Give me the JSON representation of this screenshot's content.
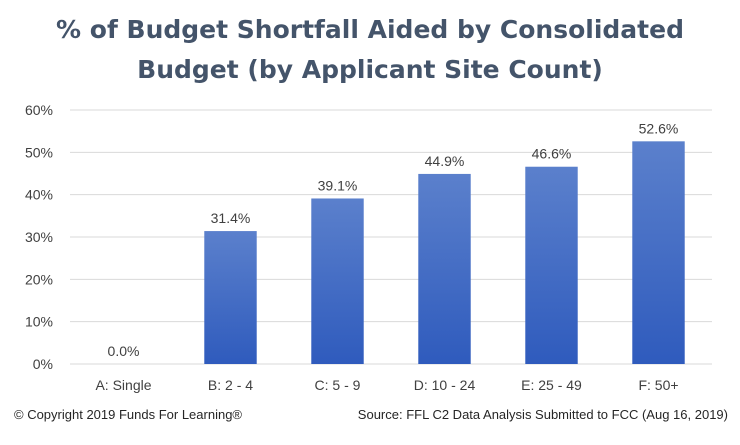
{
  "chart_data": {
    "type": "bar",
    "title_lines": [
      "% of Budget Shortfall Aided by Consolidated",
      "Budget (by Applicant Site Count)"
    ],
    "categories": [
      "A: Single",
      "B: 2 - 4",
      "C: 5 - 9",
      "D: 10 - 24",
      "E: 25 - 49",
      "F: 50+"
    ],
    "values": [
      0.0,
      31.4,
      39.1,
      44.9,
      46.6,
      52.6
    ],
    "data_labels": [
      "0.0%",
      "31.4%",
      "39.1%",
      "44.9%",
      "46.6%",
      "52.6%"
    ],
    "yticks": [
      "0%",
      "10%",
      "20%",
      "30%",
      "40%",
      "50%",
      "60%"
    ],
    "ylim": [
      0,
      60
    ],
    "grid": true,
    "legend": "none",
    "colors": {
      "bar_top": "#5b80cc",
      "bar_bottom": "#2f5bbd",
      "grid": "#d9d9d9",
      "title": "#44546a",
      "text": "#404040"
    }
  },
  "footer": {
    "copyright": "© Copyright 2019 Funds For Learning®",
    "source": "Source: FFL C2 Data Analysis Submitted to FCC (Aug 16, 2019)"
  }
}
